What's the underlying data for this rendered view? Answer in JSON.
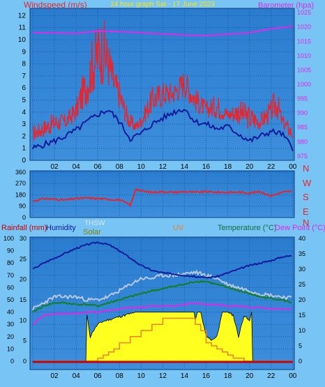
{
  "colors": {
    "page_bg": "#78c4f4",
    "plot_bg": "#2a7cd0",
    "grid": "#1a58a0",
    "windspeed": "#e8242c",
    "windavg": "#101c9c",
    "barometer": "#e028e8",
    "winddir": "#e8242c",
    "humidity": "#101c9c",
    "temperature": "#108020",
    "dewpoint": "#e028e8",
    "thsw": "#b8c8dc",
    "solar": "#ffff20",
    "uv": "#f08020",
    "rain": "#c80000",
    "rain_axis": "#c80000",
    "humidity_axis": "#101c9c",
    "solar_axis": "#808000",
    "thsw_axis": "#b8c8dc",
    "uv_axis": "#f08020",
    "temp_axis": "#108020",
    "dew_axis": "#e028e8"
  },
  "chart_data": [
    {
      "type": "line",
      "title": "24 hour graph Sat - 17 June 2023",
      "xlabel": "",
      "x_ticks": [
        "02",
        "04",
        "06",
        "08",
        "10",
        "12",
        "14",
        "16",
        "18",
        "20",
        "22",
        "00"
      ],
      "y_left": {
        "label": "Windspeed (m/s)",
        "min": 0,
        "max": 12.6,
        "ticks": [
          0,
          1,
          2,
          3,
          4,
          5,
          6,
          7,
          8,
          9,
          10,
          11,
          12
        ]
      },
      "y_right": {
        "label": "Barometer (hpa)",
        "min": 973.5,
        "max": 1026.5,
        "ticks": [
          975,
          980,
          985,
          990,
          995,
          1000,
          1005,
          1010,
          1015,
          1020,
          1025
        ]
      },
      "grid": true,
      "series": [
        {
          "name": "Windspeed (m/s)",
          "axis": "left",
          "x": [
            0,
            1,
            2,
            3,
            4,
            4.5,
            5,
            5.5,
            6,
            6.5,
            7,
            7.5,
            8,
            8.5,
            9,
            9.5,
            10,
            11,
            12,
            13,
            14,
            15,
            16,
            17,
            18,
            19,
            20,
            21,
            22,
            22.5,
            23,
            24
          ],
          "y": [
            2.5,
            3,
            3.5,
            3.5,
            4.5,
            6,
            7,
            9,
            10,
            10.5,
            9,
            7,
            6,
            4.5,
            3.5,
            3,
            3.5,
            5.5,
            6,
            6,
            7,
            5.5,
            4.5,
            5,
            4,
            4.5,
            4,
            3.5,
            4.5,
            5.5,
            3.5,
            2.5
          ]
        },
        {
          "name": "Windspeed average (m/s)",
          "axis": "left",
          "x": [
            0,
            1,
            2,
            3,
            4,
            5,
            6,
            7,
            8,
            9,
            10,
            11,
            12,
            13,
            14,
            15,
            16,
            17,
            18,
            19,
            20,
            21,
            22,
            23,
            24
          ],
          "y": [
            1,
            1.3,
            1.6,
            2,
            2.5,
            3.2,
            3.8,
            4.2,
            3.2,
            1.8,
            2.2,
            3,
            3.5,
            4,
            4.3,
            3.2,
            3,
            2.6,
            2.8,
            2.2,
            1.6,
            2,
            2.4,
            2.2,
            1
          ]
        },
        {
          "name": "Barometer (hpa)",
          "axis": "right",
          "x": [
            0,
            2,
            4,
            6,
            8,
            10,
            12,
            14,
            16,
            18,
            20,
            22,
            24
          ],
          "y": [
            1018,
            1018,
            1017.8,
            1018.6,
            1018.4,
            1018,
            1017.6,
            1017.2,
            1017,
            1017.5,
            1018,
            1019.4,
            1020.2
          ]
        }
      ]
    },
    {
      "type": "line",
      "xlabel": "",
      "y_left": {
        "label": "",
        "min": 0,
        "max": 370,
        "ticks": [
          0,
          90,
          180,
          270,
          360
        ]
      },
      "y_right": {
        "labels": [
          "N",
          "W",
          "S",
          "E",
          "N"
        ]
      },
      "grid": true,
      "series": [
        {
          "name": "Wind direction",
          "x": [
            0,
            1,
            2,
            3,
            4,
            5,
            6,
            7,
            8,
            9,
            9.2,
            9.5,
            10,
            11,
            12,
            13,
            14,
            15,
            16,
            17,
            18,
            19,
            20,
            21,
            22,
            23,
            24
          ],
          "y": [
            130,
            150,
            145,
            140,
            150,
            155,
            150,
            145,
            140,
            100,
            140,
            230,
            210,
            200,
            205,
            200,
            205,
            200,
            205,
            200,
            200,
            200,
            195,
            205,
            170,
            200,
            210
          ]
        }
      ]
    },
    {
      "type": "line",
      "xlabel": "",
      "x_ticks": [
        "02",
        "04",
        "06",
        "08",
        "10",
        "12",
        "14",
        "16",
        "18",
        "20",
        "22",
        "00"
      ],
      "axes": [
        {
          "label": "Rainfall (mm)",
          "ticks": [
            0,
            5,
            10,
            15,
            20,
            25,
            30
          ]
        },
        {
          "label": "Humidity",
          "ticks": [
            0,
            10,
            20,
            30,
            40,
            50,
            60,
            70,
            80,
            90,
            100
          ]
        },
        {
          "label": "THSW",
          "ticks": []
        },
        {
          "label": "Solar",
          "ticks": []
        },
        {
          "label": "UV",
          "ticks": []
        },
        {
          "label": "Temperature (°C)",
          "ticks": []
        },
        {
          "label": "Dew Point (°C)",
          "ticks": [
            0,
            5,
            10,
            15,
            20,
            25,
            30,
            35,
            40
          ]
        }
      ],
      "grid": true,
      "series": [
        {
          "name": "Humidity",
          "scale": "0-100",
          "x": [
            0,
            1,
            2,
            3,
            4,
            5,
            6,
            7,
            8,
            9,
            10,
            11,
            12,
            13,
            14,
            15,
            16,
            17,
            18,
            19,
            20,
            21,
            22,
            23,
            24
          ],
          "y": [
            75,
            80,
            84,
            88,
            92,
            95,
            97,
            95,
            90,
            84,
            78,
            74,
            72,
            71,
            70,
            69,
            68,
            69,
            72,
            75,
            78,
            80,
            82,
            85,
            86
          ]
        },
        {
          "name": "Temperature (°C)",
          "scale": "0-40",
          "x": [
            0,
            1,
            2,
            3,
            4,
            5,
            6,
            7,
            8,
            9,
            10,
            11,
            12,
            13,
            14,
            15,
            16,
            17,
            18,
            19,
            20,
            21,
            22,
            23,
            24
          ],
          "y": [
            16,
            18,
            19,
            19,
            18.5,
            18.5,
            18,
            19,
            20,
            21,
            22,
            23,
            23.5,
            24.5,
            25,
            26,
            26,
            25,
            24,
            23,
            22,
            21,
            20.5,
            20,
            19
          ]
        },
        {
          "name": "THSW",
          "scale": "0-40",
          "x": [
            0,
            1,
            2,
            3,
            4,
            5,
            6,
            7,
            8,
            9,
            10,
            11,
            12,
            13,
            14,
            15,
            16,
            17,
            18,
            19,
            20,
            21,
            22,
            23,
            24
          ],
          "y": [
            17,
            19,
            21,
            21,
            21,
            20,
            20,
            21,
            23,
            25,
            27,
            27,
            28,
            28,
            28.5,
            29,
            28,
            27,
            25,
            24,
            23,
            22,
            21.5,
            21,
            20.5
          ]
        },
        {
          "name": "Dew Point (°C)",
          "scale": "0-40",
          "x": [
            0,
            1,
            2,
            3,
            4,
            5,
            6,
            7,
            8,
            9,
            10,
            11,
            12,
            13,
            14,
            15,
            16,
            17,
            18,
            19,
            20,
            21,
            22,
            23,
            24
          ],
          "y": [
            12,
            15,
            15.5,
            15.5,
            15.5,
            16,
            16,
            16.5,
            17,
            17.5,
            17.5,
            18,
            18,
            18,
            18.5,
            19,
            18.5,
            18.5,
            18,
            18,
            17.5,
            17.5,
            17,
            17,
            17
          ]
        },
        {
          "name": "Solar",
          "scale": "0-40",
          "x": [
            0,
            4.9,
            5,
            5.3,
            5.6,
            6,
            6.5,
            7,
            7.5,
            8,
            8.5,
            9,
            9.5,
            10,
            11,
            12,
            13,
            14,
            14.9,
            15,
            15.2,
            15.5,
            16,
            16.5,
            17,
            17.5,
            18,
            18.5,
            19,
            19.5,
            20,
            20.2,
            20.3,
            24
          ],
          "y": [
            0,
            0,
            15,
            8,
            10,
            12,
            13,
            13.5,
            14,
            14.5,
            15,
            15.5,
            16,
            16,
            16,
            16,
            16,
            16,
            16,
            13,
            16,
            16,
            8,
            7,
            8,
            16,
            16,
            15,
            8,
            15,
            13,
            16,
            0,
            0
          ]
        },
        {
          "name": "UV",
          "scale": "0-40",
          "x": [
            0,
            5,
            5.5,
            6,
            6.5,
            7,
            7.5,
            8,
            9,
            10,
            11,
            12,
            13,
            14,
            14.5,
            15,
            15.5,
            16,
            16.5,
            17,
            17.5,
            18,
            18.5,
            19,
            19.5,
            20,
            24
          ],
          "y": [
            0,
            0,
            0,
            1,
            2,
            3,
            4,
            6,
            8,
            10,
            12,
            14,
            14,
            14,
            14,
            12,
            10,
            6,
            5,
            4,
            3,
            2,
            1,
            1,
            0,
            0,
            0
          ]
        },
        {
          "name": "Rainfall (mm)",
          "scale": "0-30",
          "x": [
            0,
            24
          ],
          "y": [
            0,
            0
          ]
        }
      ]
    }
  ]
}
